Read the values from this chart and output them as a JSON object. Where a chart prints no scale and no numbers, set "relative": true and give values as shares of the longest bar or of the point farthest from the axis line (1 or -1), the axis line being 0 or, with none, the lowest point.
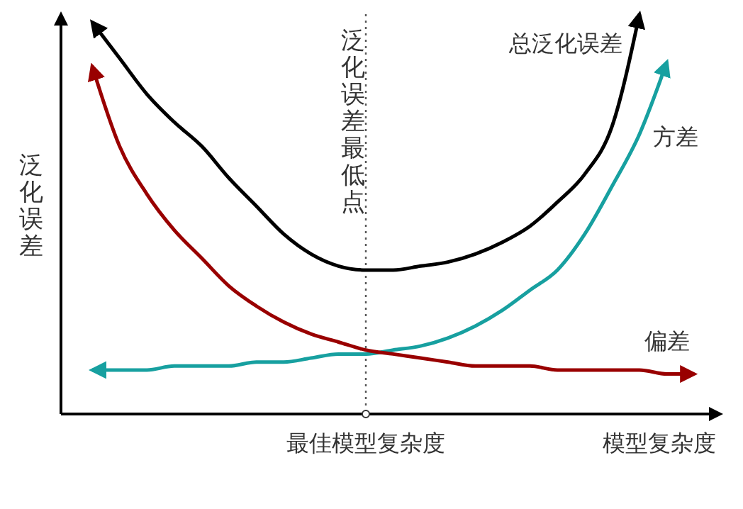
{
  "chart_data": {
    "type": "line",
    "relative": true,
    "xlabel": "模型复杂度",
    "ylabel": "泛化误差",
    "marker": "none",
    "line_style": "solid",
    "categories": [
      null,
      null,
      null,
      null,
      null,
      null,
      null,
      null,
      null,
      null,
      null,
      null,
      null,
      null,
      null,
      null,
      null,
      null,
      null,
      null,
      null,
      null,
      null
    ],
    "annotations": [
      "最佳模型复杂度",
      "泛化误差最低点"
    ],
    "series": [
      {
        "name": "总泛化误差",
        "color": "#000000",
        "values": [
          0.98,
          0.89,
          0.8,
          0.73,
          0.67,
          0.59,
          0.52,
          0.45,
          0.4,
          0.37,
          0.36,
          0.36,
          0.37,
          0.38,
          0.4,
          0.43,
          0.47,
          0.53,
          0.6,
          0.72,
          1.0,
          null,
          null
        ]
      },
      {
        "name": "方差",
        "color": "#17a0a0",
        "values": [
          0.11,
          0.11,
          0.11,
          0.12,
          0.12,
          0.12,
          0.13,
          0.13,
          0.14,
          0.15,
          0.15,
          0.16,
          0.17,
          0.19,
          0.22,
          0.26,
          0.31,
          0.36,
          0.45,
          0.57,
          0.7,
          0.88,
          null
        ]
      },
      {
        "name": "偏差",
        "color": "#990000",
        "values": [
          0.87,
          0.67,
          0.55,
          0.46,
          0.39,
          0.32,
          0.27,
          0.23,
          0.2,
          0.18,
          0.16,
          0.15,
          0.14,
          0.13,
          0.12,
          0.12,
          0.12,
          0.11,
          0.11,
          0.11,
          0.11,
          0.1,
          0.1
        ]
      }
    ]
  }
}
